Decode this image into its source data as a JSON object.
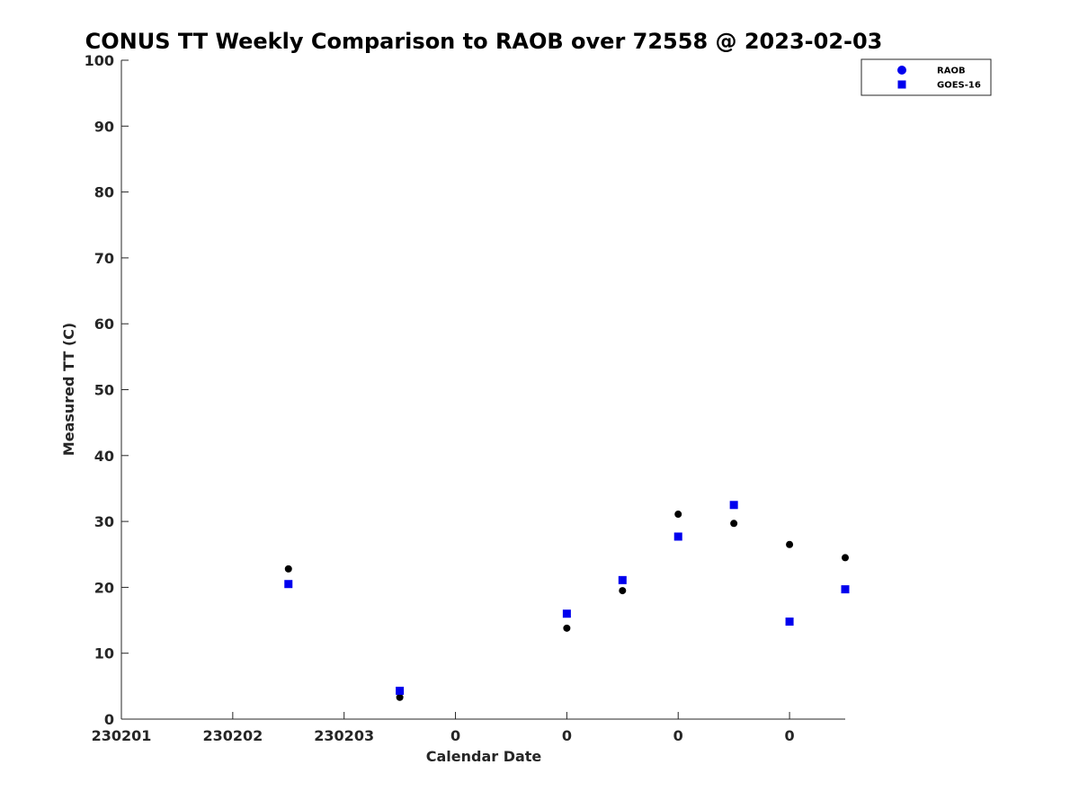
{
  "chart_data": {
    "type": "scatter",
    "title": "CONUS TT Weekly Comparison to RAOB over 72558 @ 2023-02-03",
    "xlabel": "Calendar Date",
    "ylabel": "Measured TT (C)",
    "ylim": [
      0,
      100
    ],
    "xlim": [
      0,
      6.5
    ],
    "y_ticks": [
      "0",
      "10",
      "20",
      "30",
      "40",
      "50",
      "60",
      "70",
      "80",
      "90",
      "100"
    ],
    "x_ticks": [
      {
        "value": 0,
        "label": "230201"
      },
      {
        "value": 1,
        "label": "230202"
      },
      {
        "value": 2,
        "label": "230203"
      },
      {
        "value": 3,
        "label": "0"
      },
      {
        "value": 4,
        "label": "0"
      },
      {
        "value": 5,
        "label": "0"
      },
      {
        "value": 6,
        "label": "0"
      }
    ],
    "grid": false,
    "legend_position": "top-right",
    "series": [
      {
        "name": "RAOB",
        "marker": "circle",
        "color": "#000000",
        "legend_color": "#0000ee",
        "points": [
          {
            "x": 1.5,
            "y": 22.8
          },
          {
            "x": 2.5,
            "y": 3.3
          },
          {
            "x": 4.0,
            "y": 13.8
          },
          {
            "x": 4.5,
            "y": 19.5
          },
          {
            "x": 5.0,
            "y": 31.1
          },
          {
            "x": 5.5,
            "y": 29.7
          },
          {
            "x": 6.0,
            "y": 26.5
          },
          {
            "x": 6.5,
            "y": 24.5
          }
        ]
      },
      {
        "name": "GOES-16",
        "marker": "square",
        "color": "#0000ee",
        "legend_color": "#0000ee",
        "points": [
          {
            "x": 1.5,
            "y": 20.5
          },
          {
            "x": 2.5,
            "y": 4.3
          },
          {
            "x": 4.0,
            "y": 16.0
          },
          {
            "x": 4.5,
            "y": 21.1
          },
          {
            "x": 5.0,
            "y": 27.7
          },
          {
            "x": 5.5,
            "y": 32.5
          },
          {
            "x": 6.0,
            "y": 14.8
          },
          {
            "x": 6.5,
            "y": 19.7
          }
        ]
      }
    ]
  }
}
